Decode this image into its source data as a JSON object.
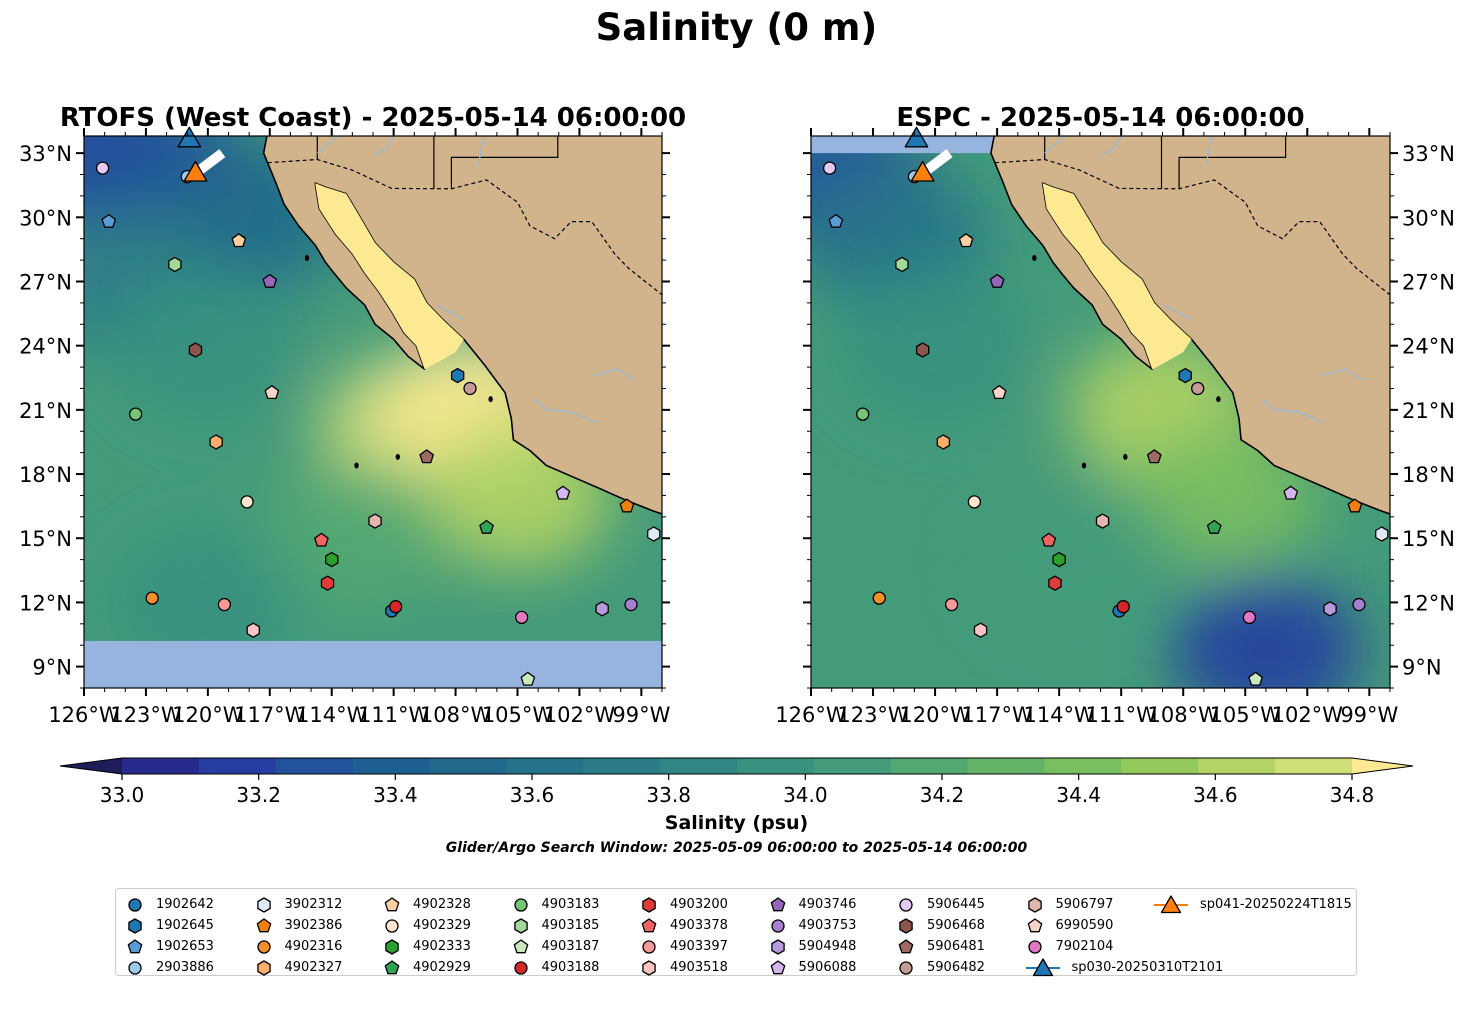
{
  "page": {
    "suptitle": "Salinity (0 m)",
    "colorbar_label": "Salinity (psu)",
    "search_window": "Glider/Argo Search Window: 2025-05-09 06:00:00 to 2025-05-14 06:00:00"
  },
  "colors": {
    "land": "#d2b48c",
    "masked_ocean": "#97b4df",
    "rivers": "#9ab9d4"
  },
  "colormap": [
    "#1f1c5a",
    "#262a8c",
    "#263ea1",
    "#21539c",
    "#1d5f92",
    "#20698c",
    "#257389",
    "#2b7c88",
    "#318685",
    "#399180",
    "#449b7a",
    "#53a872",
    "#65b368",
    "#7abf5f",
    "#93c95a",
    "#b3d464",
    "#cfdf78",
    "#fde992"
  ],
  "chart_data": [
    {
      "type": "contour-map",
      "title": "RTOFS (West Coast) - 2025-05-14 06:00:00",
      "xlim": [
        -126,
        -98
      ],
      "ylim": [
        8,
        33.8
      ],
      "xticks": [
        -126,
        -123,
        -120,
        -117,
        -114,
        -111,
        -108,
        -105,
        -102,
        -99
      ],
      "xticklabels": [
        "126°W",
        "123°W",
        "120°W",
        "117°W",
        "114°W",
        "111°W",
        "108°W",
        "105°W",
        "102°W",
        "99°W"
      ],
      "yticks": [
        9,
        12,
        15,
        18,
        21,
        24,
        27,
        30,
        33
      ],
      "yticklabels": [
        "9°N",
        "12°N",
        "15°N",
        "18°N",
        "21°N",
        "24°N",
        "27°N",
        "30°N",
        "33°N"
      ],
      "ytick_side": "left",
      "data_gap_below_lat": 10.2,
      "salinity_field": [
        {
          "lon": -125,
          "lat": 33,
          "value": 33.1
        },
        {
          "lon": -122,
          "lat": 32,
          "value": 33.2
        },
        {
          "lon": -118,
          "lat": 30,
          "value": 33.4
        },
        {
          "lon": -124,
          "lat": 27,
          "value": 33.6
        },
        {
          "lon": -120,
          "lat": 24,
          "value": 33.8
        },
        {
          "lon": -110,
          "lat": 20,
          "value": 34.5
        },
        {
          "lon": -107,
          "lat": 21,
          "value": 34.7
        },
        {
          "lon": -105,
          "lat": 17,
          "value": 34.4
        },
        {
          "lon": -113,
          "lat": 15,
          "value": 34.0
        },
        {
          "lon": -120,
          "lat": 12,
          "value": 33.8
        }
      ]
    },
    {
      "type": "contour-map",
      "title": "ESPC - 2025-05-14 06:00:00",
      "xlim": [
        -126,
        -98
      ],
      "ylim": [
        8,
        33.8
      ],
      "xticks": [
        -126,
        -123,
        -120,
        -117,
        -114,
        -111,
        -108,
        -105,
        -102,
        -99
      ],
      "xticklabels": [
        "126°W",
        "123°W",
        "120°W",
        "117°W",
        "114°W",
        "111°W",
        "108°W",
        "105°W",
        "102°W",
        "99°W"
      ],
      "yticks": [
        9,
        12,
        15,
        18,
        21,
        24,
        27,
        30,
        33
      ],
      "yticklabels": [
        "9°N",
        "12°N",
        "15°N",
        "18°N",
        "21°N",
        "24°N",
        "27°N",
        "30°N",
        "33°N"
      ],
      "ytick_side": "right",
      "data_gap_above_lat": 33.0,
      "salinity_field": [
        {
          "lon": -125,
          "lat": 32,
          "value": 33.2
        },
        {
          "lon": -122,
          "lat": 29,
          "value": 33.5
        },
        {
          "lon": -120,
          "lat": 24,
          "value": 33.8
        },
        {
          "lon": -109,
          "lat": 21,
          "value": 34.4
        },
        {
          "lon": -106,
          "lat": 17,
          "value": 34.2
        },
        {
          "lon": -113,
          "lat": 14,
          "value": 33.9
        },
        {
          "lon": -104,
          "lat": 9.8,
          "value": 33.1
        }
      ]
    },
    {
      "type": "colorbar",
      "label": "Salinity (psu)",
      "vmin": 32.9,
      "vmax": 34.9,
      "step": 0.1,
      "extend": "both",
      "ticks": [
        "33.0",
        "33.2",
        "33.4",
        "33.6",
        "33.8",
        "34.0",
        "34.2",
        "34.4",
        "34.6",
        "34.8"
      ]
    }
  ],
  "platforms": [
    {
      "id": "1902642",
      "marker": "circle",
      "color": "#1f77b4",
      "lon": -111.1,
      "lat": 11.6
    },
    {
      "id": "1902645",
      "marker": "hexagon",
      "color": "#1f77b4",
      "lon": -107.9,
      "lat": 22.6
    },
    {
      "id": "1902653",
      "marker": "pentagon",
      "color": "#5b9bd5",
      "lon": -124.8,
      "lat": 29.8
    },
    {
      "id": "2903886",
      "marker": "circle",
      "color": "#9ecae9",
      "lon": -121.0,
      "lat": 31.9
    },
    {
      "id": "3902312",
      "marker": "hexagon",
      "color": "#deebf7",
      "lon": -98.4,
      "lat": 15.2
    },
    {
      "id": "3902386",
      "marker": "pentagon",
      "color": "#f07f0e",
      "lon": -99.7,
      "lat": 16.5
    },
    {
      "id": "4902316",
      "marker": "circle",
      "color": "#f28e2b",
      "lon": -122.7,
      "lat": 12.2
    },
    {
      "id": "4902327",
      "marker": "hexagon",
      "color": "#fdae6b",
      "lon": -119.6,
      "lat": 19.5
    },
    {
      "id": "4902328",
      "marker": "pentagon",
      "color": "#fdd0a2",
      "lon": -118.5,
      "lat": 28.9
    },
    {
      "id": "4902329",
      "marker": "circle",
      "color": "#fee6ce",
      "lon": -118.1,
      "lat": 16.7
    },
    {
      "id": "4902333",
      "marker": "hexagon",
      "color": "#2ca02c",
      "lon": -114.0,
      "lat": 14.0
    },
    {
      "id": "4902929",
      "marker": "pentagon",
      "color": "#31a354",
      "lon": -106.5,
      "lat": 15.5
    },
    {
      "id": "4903183",
      "marker": "circle",
      "color": "#74c476",
      "lon": -123.5,
      "lat": 20.8
    },
    {
      "id": "4903185",
      "marker": "hexagon",
      "color": "#a1d99b",
      "lon": -121.6,
      "lat": 27.8
    },
    {
      "id": "4903187",
      "marker": "pentagon",
      "color": "#c7e9c0",
      "lon": -104.5,
      "lat": 8.4
    },
    {
      "id": "4903188",
      "marker": "circle",
      "color": "#d62728",
      "lon": -110.9,
      "lat": 11.8
    },
    {
      "id": "4903200",
      "marker": "hexagon",
      "color": "#e03c3c",
      "lon": -114.2,
      "lat": 12.9
    },
    {
      "id": "4903378",
      "marker": "pentagon",
      "color": "#f06464",
      "lon": -114.5,
      "lat": 14.9
    },
    {
      "id": "4903397",
      "marker": "circle",
      "color": "#f59999",
      "lon": -119.2,
      "lat": 11.9
    },
    {
      "id": "4903518",
      "marker": "hexagon",
      "color": "#fbc3c3",
      "lon": -117.8,
      "lat": 10.7
    },
    {
      "id": "4903746",
      "marker": "pentagon",
      "color": "#9467bd",
      "lon": -117.0,
      "lat": 27.0
    },
    {
      "id": "4903753",
      "marker": "circle",
      "color": "#a77fd0",
      "lon": -99.5,
      "lat": 11.9
    },
    {
      "id": "5904948",
      "marker": "hexagon",
      "color": "#b799dc",
      "lon": -100.9,
      "lat": 11.7
    },
    {
      "id": "5906088",
      "marker": "pentagon",
      "color": "#d3b5f0",
      "lon": -102.8,
      "lat": 17.1
    },
    {
      "id": "5906445",
      "marker": "circle",
      "color": "#e7c8f5",
      "lon": -125.1,
      "lat": 32.3
    },
    {
      "id": "5906468",
      "marker": "hexagon",
      "color": "#8c564b",
      "lon": -120.6,
      "lat": 23.8
    },
    {
      "id": "5906481",
      "marker": "pentagon",
      "color": "#9c6a60",
      "lon": -109.4,
      "lat": 18.8
    },
    {
      "id": "5906482",
      "marker": "circle",
      "color": "#c49c94",
      "lon": -107.3,
      "lat": 22.0
    },
    {
      "id": "5906797",
      "marker": "hexagon",
      "color": "#e2b8ae",
      "lon": -111.9,
      "lat": 15.8
    },
    {
      "id": "6990590",
      "marker": "pentagon",
      "color": "#f7d4c8",
      "lon": -116.9,
      "lat": 21.8
    },
    {
      "id": "7902104",
      "marker": "circle",
      "color": "#e377c2",
      "lon": -104.8,
      "lat": 11.3
    },
    {
      "id": "sp030-20250310T2101",
      "marker": "triangle",
      "color": "#1f77b4",
      "lon": -120.9,
      "lat": 33.6
    },
    {
      "id": "sp041-20250224T1815",
      "marker": "triangle",
      "color": "#ff7f0e",
      "lon": -120.6,
      "lat": 32.0
    }
  ]
}
